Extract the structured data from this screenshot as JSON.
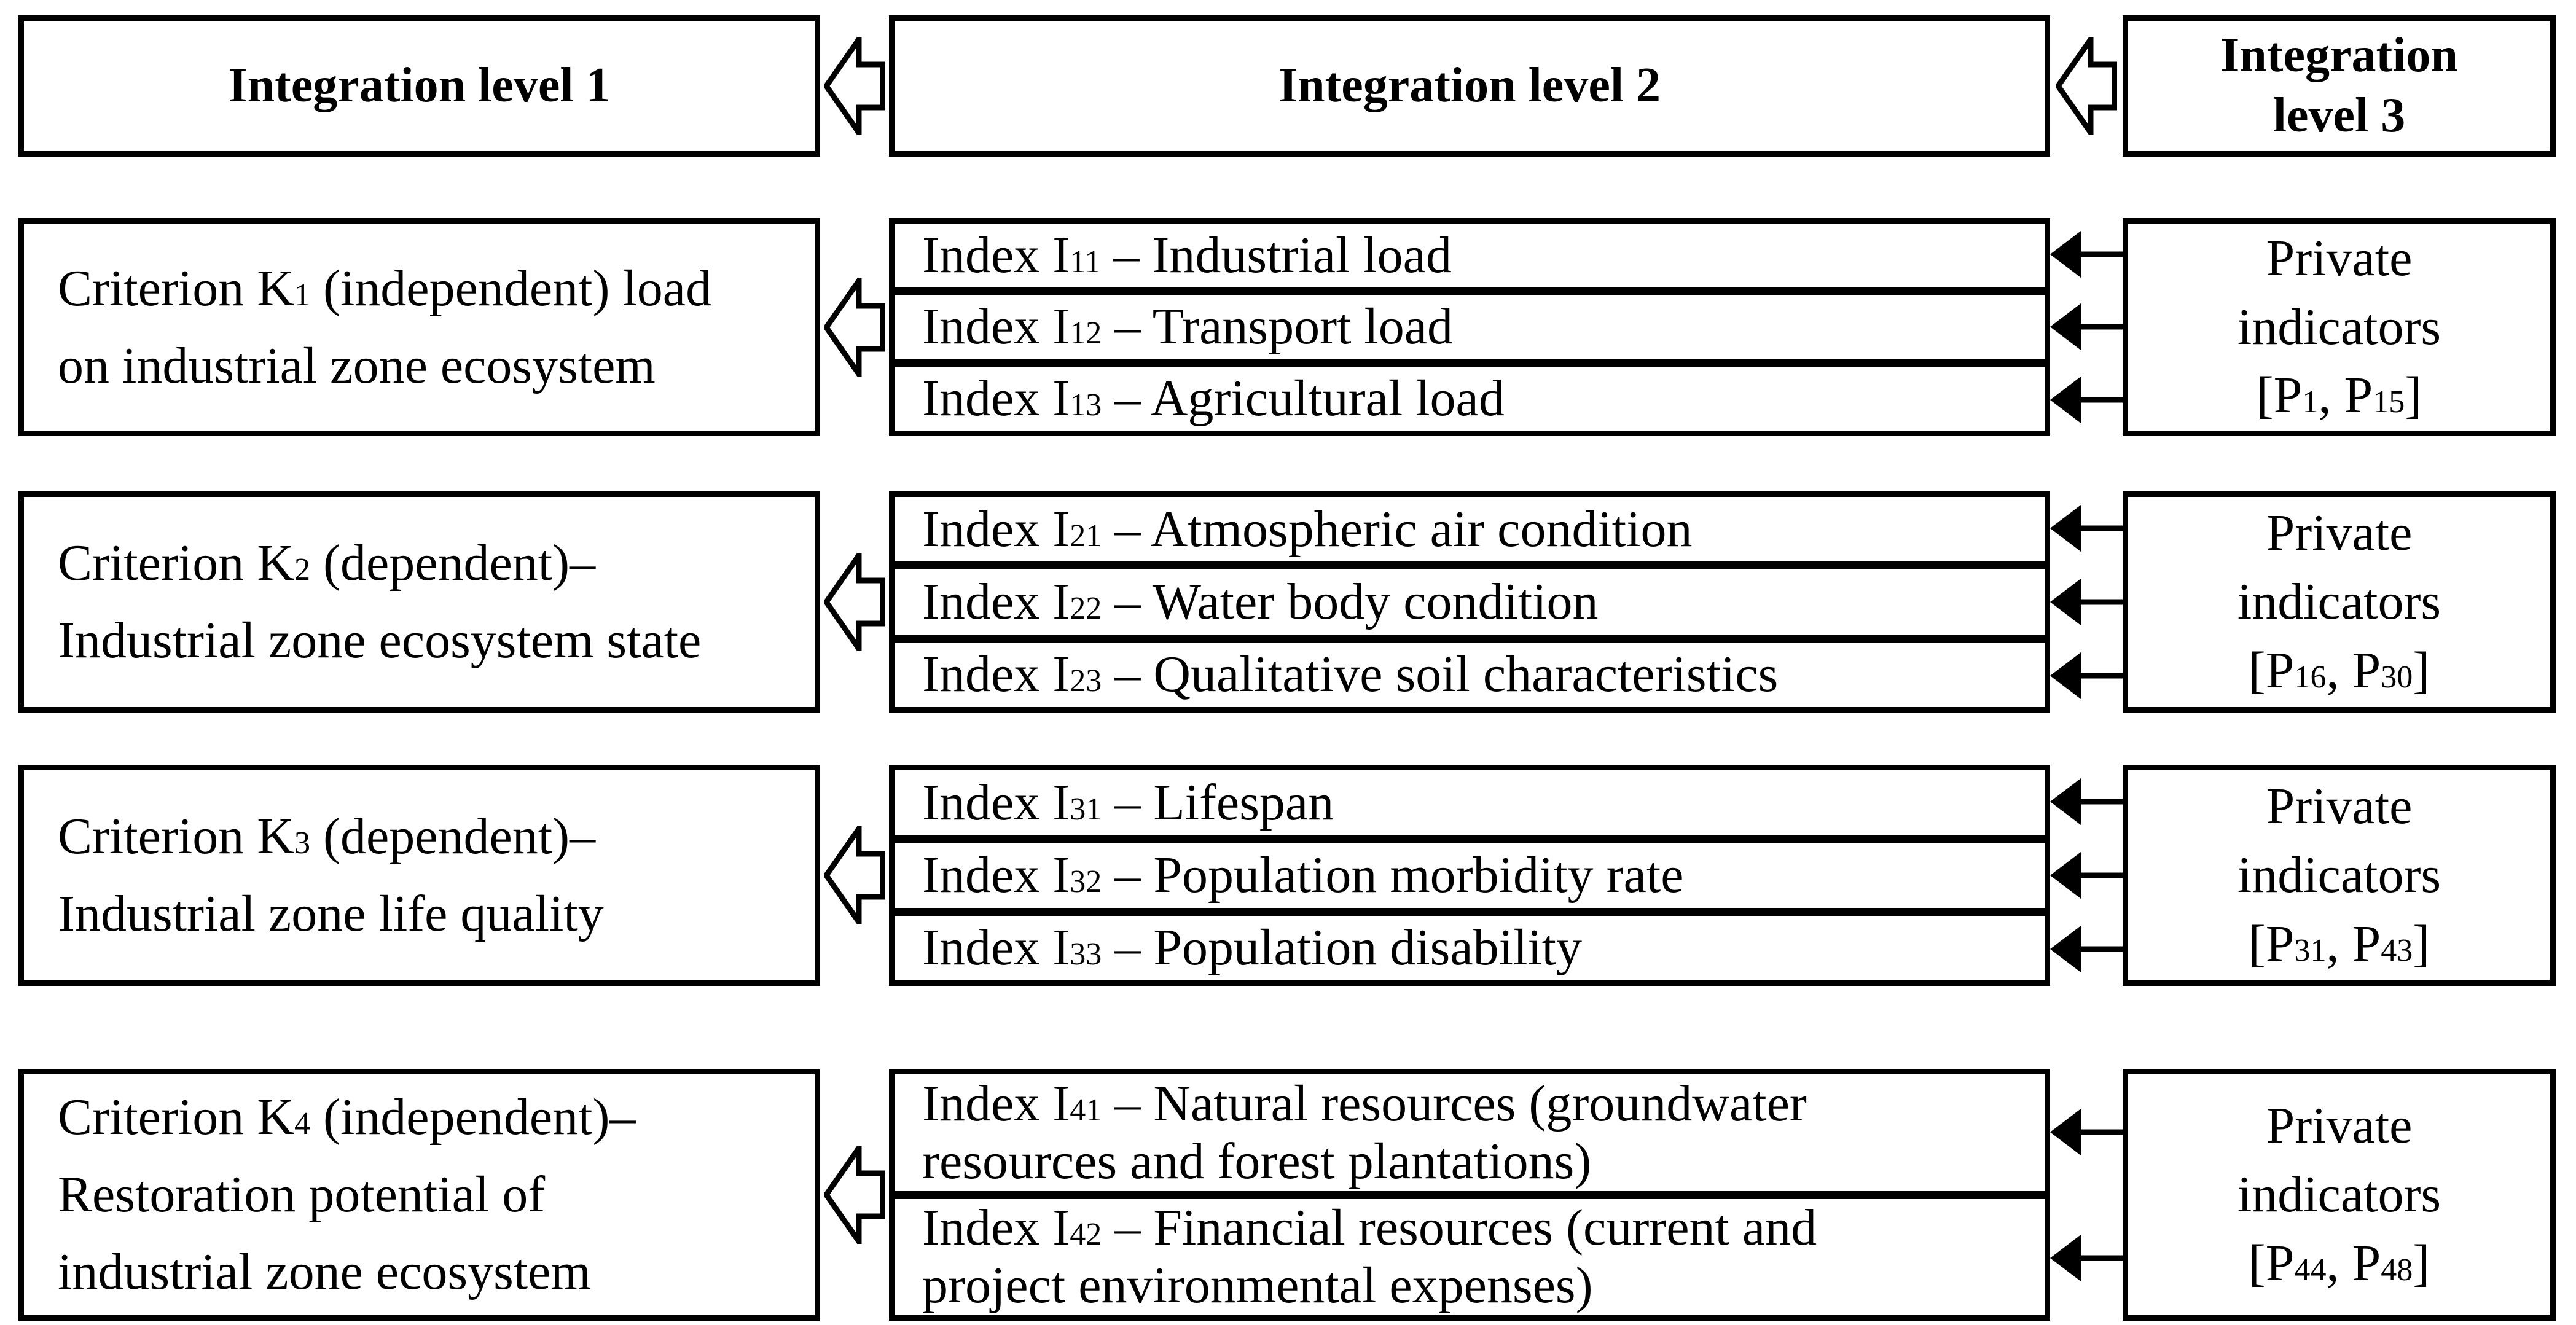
{
  "colors": {
    "ink": "#000000",
    "paper": "#ffffff"
  },
  "headers": {
    "level1": [
      [
        {
          "t": "Integration level 1"
        }
      ]
    ],
    "level2": [
      [
        {
          "t": "Integration level 2"
        }
      ]
    ],
    "level3": [
      [
        {
          "t": "Integration"
        }
      ],
      [
        {
          "t": "level 3"
        }
      ]
    ]
  },
  "rows": [
    {
      "criterion": [
        [
          {
            "t": "Criterion K"
          },
          {
            "sub": "1"
          },
          {
            "t": " (independent) load"
          }
        ],
        [
          {
            "t": "on industrial zone ecosystem"
          }
        ]
      ],
      "indices": [
        [
          [
            {
              "t": "Index I"
            },
            {
              "sub": "11"
            },
            {
              "t": " – Industrial load"
            }
          ]
        ],
        [
          [
            {
              "t": "Index I"
            },
            {
              "sub": "12"
            },
            {
              "t": " – Transport load"
            }
          ]
        ],
        [
          [
            {
              "t": "Index I"
            },
            {
              "sub": "13"
            },
            {
              "t": " – Agricultural load"
            }
          ]
        ]
      ],
      "private": [
        [
          {
            "t": "Private"
          }
        ],
        [
          {
            "t": "indicators"
          }
        ],
        [
          {
            "t": "[P"
          },
          {
            "sub": "1"
          },
          {
            "t": ", P"
          },
          {
            "sub": "15"
          },
          {
            "t": "]"
          }
        ]
      ]
    },
    {
      "criterion": [
        [
          {
            "t": "Criterion K"
          },
          {
            "sub": "2"
          },
          {
            "t": " (dependent)–"
          }
        ],
        [
          {
            "t": "Industrial zone ecosystem state"
          }
        ]
      ],
      "indices": [
        [
          [
            {
              "t": "Index I"
            },
            {
              "sub": "21"
            },
            {
              "t": " – Atmospheric air condition"
            }
          ]
        ],
        [
          [
            {
              "t": "Index I"
            },
            {
              "sub": "22"
            },
            {
              "t": " – Water body condition"
            }
          ]
        ],
        [
          [
            {
              "t": "Index I"
            },
            {
              "sub": "23"
            },
            {
              "t": " – Qualitative soil characteristics"
            }
          ]
        ]
      ],
      "private": [
        [
          {
            "t": "Private"
          }
        ],
        [
          {
            "t": "indicators"
          }
        ],
        [
          {
            "t": "[P"
          },
          {
            "sub": "16"
          },
          {
            "t": ", P"
          },
          {
            "sub": "30"
          },
          {
            "t": "]"
          }
        ]
      ]
    },
    {
      "criterion": [
        [
          {
            "t": "Criterion K"
          },
          {
            "sub": "3"
          },
          {
            "t": " (dependent)–"
          }
        ],
        [
          {
            "t": "Industrial zone life quality"
          }
        ]
      ],
      "indices": [
        [
          [
            {
              "t": "Index I"
            },
            {
              "sub": "31"
            },
            {
              "t": " – Lifespan"
            }
          ]
        ],
        [
          [
            {
              "t": "Index I"
            },
            {
              "sub": "32"
            },
            {
              "t": " – Population morbidity rate"
            }
          ]
        ],
        [
          [
            {
              "t": "Index I"
            },
            {
              "sub": "33"
            },
            {
              "t": " – Population disability"
            }
          ]
        ]
      ],
      "private": [
        [
          {
            "t": "Private"
          }
        ],
        [
          {
            "t": "indicators"
          }
        ],
        [
          {
            "t": "[P"
          },
          {
            "sub": "31"
          },
          {
            "t": ", P"
          },
          {
            "sub": "43"
          },
          {
            "t": "]"
          }
        ]
      ]
    },
    {
      "criterion": [
        [
          {
            "t": "Criterion K"
          },
          {
            "sub": "4"
          },
          {
            "t": " (independent)–"
          }
        ],
        [
          {
            "t": "Restoration potential of"
          }
        ],
        [
          {
            "t": "industrial zone ecosystem"
          }
        ]
      ],
      "indices": [
        [
          [
            {
              "t": "Index I"
            },
            {
              "sub": "41"
            },
            {
              "t": " – Natural resources (groundwater"
            }
          ],
          [
            {
              "t": "resources and forest plantations)"
            }
          ]
        ],
        [
          [
            {
              "t": "Index I"
            },
            {
              "sub": "42"
            },
            {
              "t": " – Financial resources (current and"
            }
          ],
          [
            {
              "t": "project environmental expenses)"
            }
          ]
        ]
      ],
      "private": [
        [
          {
            "t": "Private"
          }
        ],
        [
          {
            "t": "indicators"
          }
        ],
        [
          {
            "t": "[P"
          },
          {
            "sub": "44"
          },
          {
            "t": ", P"
          },
          {
            "sub": "48"
          },
          {
            "t": "]"
          }
        ]
      ]
    }
  ]
}
